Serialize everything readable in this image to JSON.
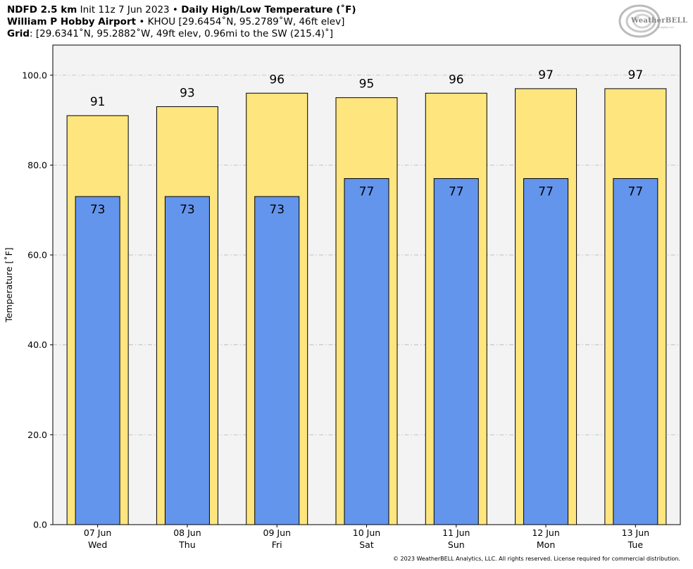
{
  "header": {
    "line1_bold1": "NDFD 2.5 km",
    "line1_text": " Init 11z 7 Jun 2023 • ",
    "line1_bold2": "Daily High/Low Temperature (˚F)",
    "line2_bold": "William P Hobby Airport",
    "line2_text": " • KHOU [29.6454˚N, 95.2789˚W, 46ft elev]",
    "line3_bold": "Grid",
    "line3_text": ": [29.6341˚N, 95.2882˚W, 49ft elev, 0.96mi to the SW (215.4)˚]"
  },
  "logo": {
    "text": "WeatherBELL",
    "sub": "Analytics LLC"
  },
  "copyright": "© 2023 WeatherBELL Analytics, LLC. All rights reserved. License required for commercial distribution.",
  "chart_data": {
    "type": "bar",
    "ylabel": "Temperature [˚F]",
    "ylim": [
      0,
      106.7
    ],
    "yticks": [
      "0.0",
      "20.0",
      "40.0",
      "60.0",
      "80.0",
      "100.0"
    ],
    "grid": true,
    "categories": [
      [
        "07 Jun",
        "Wed"
      ],
      [
        "08 Jun",
        "Thu"
      ],
      [
        "09 Jun",
        "Fri"
      ],
      [
        "10 Jun",
        "Sat"
      ],
      [
        "11 Jun",
        "Sun"
      ],
      [
        "12 Jun",
        "Mon"
      ],
      [
        "13 Jun",
        "Tue"
      ]
    ],
    "series": [
      {
        "values": [
          91,
          93,
          96,
          95,
          96,
          97,
          97
        ],
        "color": "#fee57e"
      },
      {
        "values": [
          73,
          73,
          73,
          77,
          77,
          77,
          77
        ],
        "color": "#6495ed"
      }
    ],
    "plot_background": "#f4f3f4"
  }
}
